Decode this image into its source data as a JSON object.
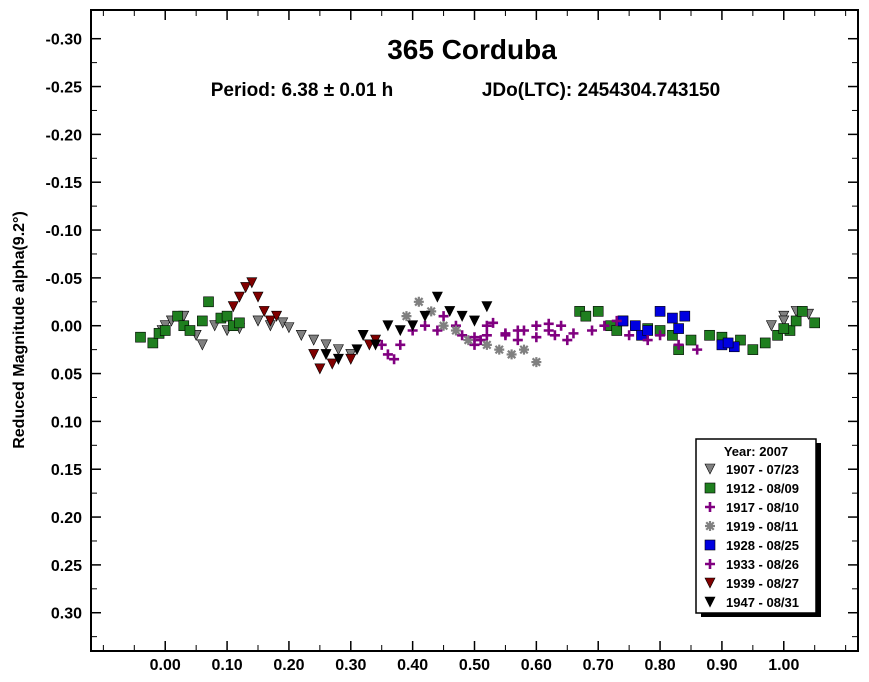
{
  "chart_data": {
    "type": "scatter",
    "title": "365 Corduba",
    "subtitle_period": "Period: 6.38 ± 0.01 h",
    "subtitle_epoch": "JDo(LTC): 2454304.743150",
    "ylabel": "Reduced Magnitude alpha(9.2°)",
    "xlabel": "",
    "xlim": [
      -0.12,
      1.12
    ],
    "ylim": [
      -0.33,
      0.34
    ],
    "y_inverted": true,
    "x_ticks": [
      0.0,
      0.1,
      0.2,
      0.3,
      0.4,
      0.5,
      0.6,
      0.7,
      0.8,
      0.9,
      1.0
    ],
    "x_tick_labels": [
      "0.00",
      "0.10",
      "0.20",
      "0.30",
      "0.40",
      "0.50",
      "0.60",
      "0.70",
      "0.80",
      "0.90",
      "1.00"
    ],
    "y_ticks": [
      -0.3,
      -0.25,
      -0.2,
      -0.15,
      -0.1,
      -0.05,
      0.0,
      0.05,
      0.1,
      0.15,
      0.2,
      0.25,
      0.3
    ],
    "y_tick_labels": [
      "-0.30",
      "-0.25",
      "-0.20",
      "-0.15",
      "-0.10",
      "-0.05",
      "0.00",
      "0.05",
      "0.10",
      "0.15",
      "0.20",
      "0.25",
      "0.30"
    ],
    "grid": false,
    "legend_title": "Year: 2007",
    "legend_position": "bottom-right",
    "series": [
      {
        "name": "1907 - 07/23",
        "marker": "triangle-down",
        "color": "#808080",
        "points": [
          [
            -0.005,
            0.005
          ],
          [
            0.0,
            0.0
          ],
          [
            0.01,
            -0.005
          ],
          [
            0.03,
            -0.01
          ],
          [
            0.05,
            0.01
          ],
          [
            0.06,
            0.02
          ],
          [
            0.08,
            0.0
          ],
          [
            0.1,
            0.005
          ],
          [
            0.12,
            0.003
          ],
          [
            0.15,
            -0.005
          ],
          [
            0.17,
            0.0
          ],
          [
            0.19,
            -0.003
          ],
          [
            0.2,
            0.002
          ],
          [
            0.22,
            0.01
          ],
          [
            0.24,
            0.015
          ],
          [
            0.26,
            0.02
          ],
          [
            0.28,
            0.025
          ],
          [
            0.3,
            0.03
          ],
          [
            1.0,
            -0.01
          ],
          [
            1.02,
            -0.015
          ],
          [
            1.04,
            -0.012
          ],
          [
            1.0,
            -0.005
          ],
          [
            0.98,
            0.0
          ]
        ]
      },
      {
        "name": "1912 - 08/09",
        "marker": "square",
        "color": "#1f7f1f",
        "points": [
          [
            -0.04,
            0.012
          ],
          [
            -0.02,
            0.018
          ],
          [
            -0.01,
            0.008
          ],
          [
            0.0,
            0.005
          ],
          [
            0.02,
            -0.01
          ],
          [
            0.03,
            0.0
          ],
          [
            0.04,
            0.005
          ],
          [
            0.06,
            -0.005
          ],
          [
            0.07,
            -0.025
          ],
          [
            0.09,
            -0.008
          ],
          [
            0.1,
            -0.01
          ],
          [
            0.11,
            0.0
          ],
          [
            0.12,
            -0.003
          ],
          [
            0.67,
            -0.015
          ],
          [
            0.68,
            -0.01
          ],
          [
            0.7,
            -0.015
          ],
          [
            0.72,
            0.0
          ],
          [
            0.73,
            0.005
          ],
          [
            0.74,
            -0.005
          ],
          [
            0.78,
            0.003
          ],
          [
            0.8,
            0.005
          ],
          [
            0.82,
            0.01
          ],
          [
            0.83,
            0.025
          ],
          [
            0.85,
            0.015
          ],
          [
            0.88,
            0.01
          ],
          [
            0.9,
            0.012
          ],
          [
            0.93,
            0.015
          ],
          [
            0.95,
            0.025
          ],
          [
            0.97,
            0.018
          ],
          [
            0.99,
            0.01
          ],
          [
            1.01,
            0.005
          ],
          [
            1.02,
            -0.005
          ],
          [
            1.03,
            -0.015
          ],
          [
            1.05,
            -0.003
          ],
          [
            1.0,
            0.003
          ]
        ]
      },
      {
        "name": "1917 - 08/10",
        "marker": "plus",
        "color": "#800080",
        "points": [
          [
            0.44,
            0.005
          ],
          [
            0.45,
            -0.01
          ],
          [
            0.47,
            0.0
          ],
          [
            0.48,
            0.01
          ],
          [
            0.5,
            0.02
          ],
          [
            0.51,
            0.015
          ],
          [
            0.52,
            0.0
          ],
          [
            0.53,
            -0.003
          ],
          [
            0.55,
            0.01
          ],
          [
            0.57,
            0.015
          ],
          [
            0.58,
            0.005
          ],
          [
            0.6,
            0.0
          ],
          [
            0.62,
            -0.002
          ],
          [
            0.63,
            0.01
          ],
          [
            0.65,
            0.015
          ]
        ]
      },
      {
        "name": "1919 - 08/11",
        "marker": "asterisk",
        "color": "#808080",
        "points": [
          [
            0.41,
            -0.025
          ],
          [
            0.43,
            -0.015
          ],
          [
            0.45,
            0.0
          ],
          [
            0.47,
            0.005
          ],
          [
            0.49,
            0.015
          ],
          [
            0.52,
            0.02
          ],
          [
            0.54,
            0.025
          ],
          [
            0.56,
            0.03
          ],
          [
            0.58,
            0.025
          ],
          [
            0.6,
            0.038
          ],
          [
            0.39,
            -0.01
          ]
        ]
      },
      {
        "name": "1928 - 08/25",
        "marker": "square",
        "color": "#0000e0",
        "points": [
          [
            0.74,
            -0.005
          ],
          [
            0.76,
            0.0
          ],
          [
            0.77,
            0.01
          ],
          [
            0.78,
            0.005
          ],
          [
            0.8,
            -0.015
          ],
          [
            0.82,
            -0.008
          ],
          [
            0.84,
            -0.01
          ],
          [
            0.83,
            0.003
          ],
          [
            0.9,
            0.02
          ],
          [
            0.92,
            0.022
          ],
          [
            0.91,
            0.018
          ]
        ]
      },
      {
        "name": "1933 - 08/26",
        "marker": "plus",
        "color": "#800080",
        "points": [
          [
            0.35,
            0.02
          ],
          [
            0.36,
            0.03
          ],
          [
            0.37,
            0.035
          ],
          [
            0.38,
            0.02
          ],
          [
            0.4,
            0.005
          ],
          [
            0.42,
            0.0
          ],
          [
            0.5,
            0.012
          ],
          [
            0.52,
            0.01
          ],
          [
            0.55,
            0.008
          ],
          [
            0.57,
            0.005
          ],
          [
            0.6,
            0.012
          ],
          [
            0.62,
            0.005
          ],
          [
            0.64,
            0.0
          ],
          [
            0.66,
            0.008
          ],
          [
            0.69,
            0.005
          ],
          [
            0.71,
            0.0
          ],
          [
            0.73,
            -0.005
          ],
          [
            0.75,
            0.01
          ],
          [
            0.78,
            0.015
          ],
          [
            0.8,
            0.01
          ],
          [
            0.83,
            0.02
          ],
          [
            0.86,
            0.025
          ]
        ]
      },
      {
        "name": "1939 - 08/27",
        "marker": "triangle-down",
        "color": "#800000",
        "points": [
          [
            0.11,
            -0.02
          ],
          [
            0.12,
            -0.03
          ],
          [
            0.13,
            -0.04
          ],
          [
            0.14,
            -0.045
          ],
          [
            0.15,
            -0.03
          ],
          [
            0.16,
            -0.015
          ],
          [
            0.17,
            -0.005
          ],
          [
            0.18,
            -0.01
          ],
          [
            0.24,
            0.03
          ],
          [
            0.25,
            0.045
          ],
          [
            0.27,
            0.04
          ],
          [
            0.3,
            0.035
          ],
          [
            0.33,
            0.02
          ],
          [
            0.34,
            0.015
          ]
        ]
      },
      {
        "name": "1947 - 08/31",
        "marker": "triangle-down",
        "color": "#000000",
        "points": [
          [
            0.26,
            0.03
          ],
          [
            0.28,
            0.035
          ],
          [
            0.31,
            0.025
          ],
          [
            0.32,
            0.01
          ],
          [
            0.34,
            0.02
          ],
          [
            0.36,
            0.0
          ],
          [
            0.38,
            0.005
          ],
          [
            0.4,
            0.0
          ],
          [
            0.42,
            -0.01
          ],
          [
            0.44,
            -0.03
          ],
          [
            0.46,
            -0.015
          ],
          [
            0.48,
            -0.01
          ],
          [
            0.5,
            -0.005
          ],
          [
            0.52,
            -0.02
          ]
        ]
      }
    ]
  }
}
